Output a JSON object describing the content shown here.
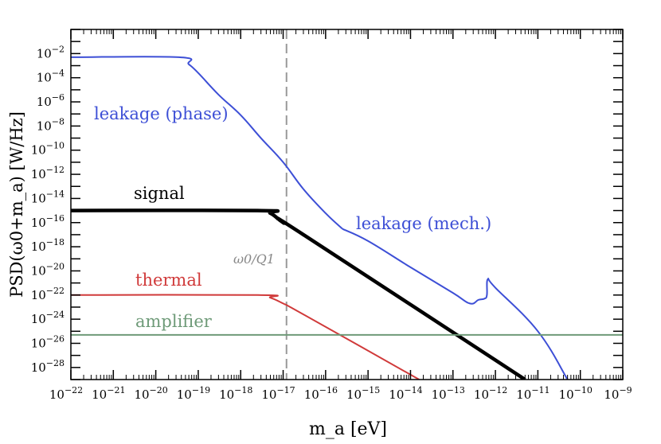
{
  "chart_data": {
    "type": "line",
    "xlabel": "m_a  [eV]",
    "ylabel": "PSD(ω0+m_a)  [W/Hz]",
    "x_scale": "log",
    "y_scale": "log",
    "xlim": [
      1e-22,
      1e-09
    ],
    "ylim": [
      1e-29,
      1.0
    ],
    "x_tick_exponents": [
      -22,
      -21,
      -20,
      -19,
      -18,
      -17,
      -16,
      -15,
      -14,
      -13,
      -12,
      -11,
      -10,
      -9
    ],
    "y_tick_exponents": [
      -2,
      -4,
      -6,
      -8,
      -10,
      -12,
      -14,
      -16,
      -18,
      -20,
      -22,
      -24,
      -26,
      -28
    ],
    "grid": false,
    "series": [
      {
        "name": "leakage (phase)",
        "color": "#3d4fd6",
        "x": [
          1e-22,
          3.5e-20,
          6e-20,
          1e-19,
          3e-19,
          1e-18,
          3e-18,
          1e-17,
          3e-17,
          1e-16,
          2.5e-16
        ],
        "y": [
          0.005,
          0.005,
          0.0013,
          0.00025,
          4e-06,
          8e-08,
          1e-09,
          1e-11,
          6e-14,
          6e-16,
          3e-17
        ]
      },
      {
        "name": "leakage (mech.)",
        "color": "#3d4fd6",
        "x": [
          2.5e-16,
          1e-15,
          1e-14,
          1e-13,
          2.5e-13,
          4e-13,
          5.5e-13,
          6.3e-13,
          6.6e-13,
          1e-12,
          1e-11,
          5e-11
        ],
        "y": [
          3e-17,
          3e-18,
          2e-20,
          1.5e-22,
          2e-23,
          4e-23,
          5e-23,
          1e-22,
          2e-21,
          4e-22,
          1e-25,
          1e-29
        ]
      },
      {
        "name": "signal",
        "color": "#000000",
        "x": [
          1e-22,
          2.5e-18,
          5e-18,
          1e-17,
          3e-17,
          5e-12
        ],
        "y": [
          1e-15,
          1e-15,
          6e-16,
          1e-16,
          1e-17,
          1e-29
        ]
      },
      {
        "name": "thermal",
        "color": "#d03a3a",
        "x": [
          1e-22,
          2.5e-18,
          5e-18,
          1e-17,
          3e-17,
          1.6e-14
        ],
        "y": [
          1e-22,
          1e-22,
          6e-23,
          2e-23,
          2.5e-24,
          1e-29
        ]
      },
      {
        "name": "amplifier",
        "color": "#6e9a78",
        "x": [
          1e-22,
          1e-09
        ],
        "y": [
          5e-26,
          5e-26
        ]
      }
    ],
    "vline": {
      "x": 1.2e-17,
      "label": "ω0/Q1",
      "color": "#999999"
    },
    "annotations": {
      "leakage_phase": "leakage (phase)",
      "leakage_mech": "leakage (mech.)",
      "signal": "signal",
      "thermal": "thermal",
      "amplifier": "amplifier"
    }
  }
}
